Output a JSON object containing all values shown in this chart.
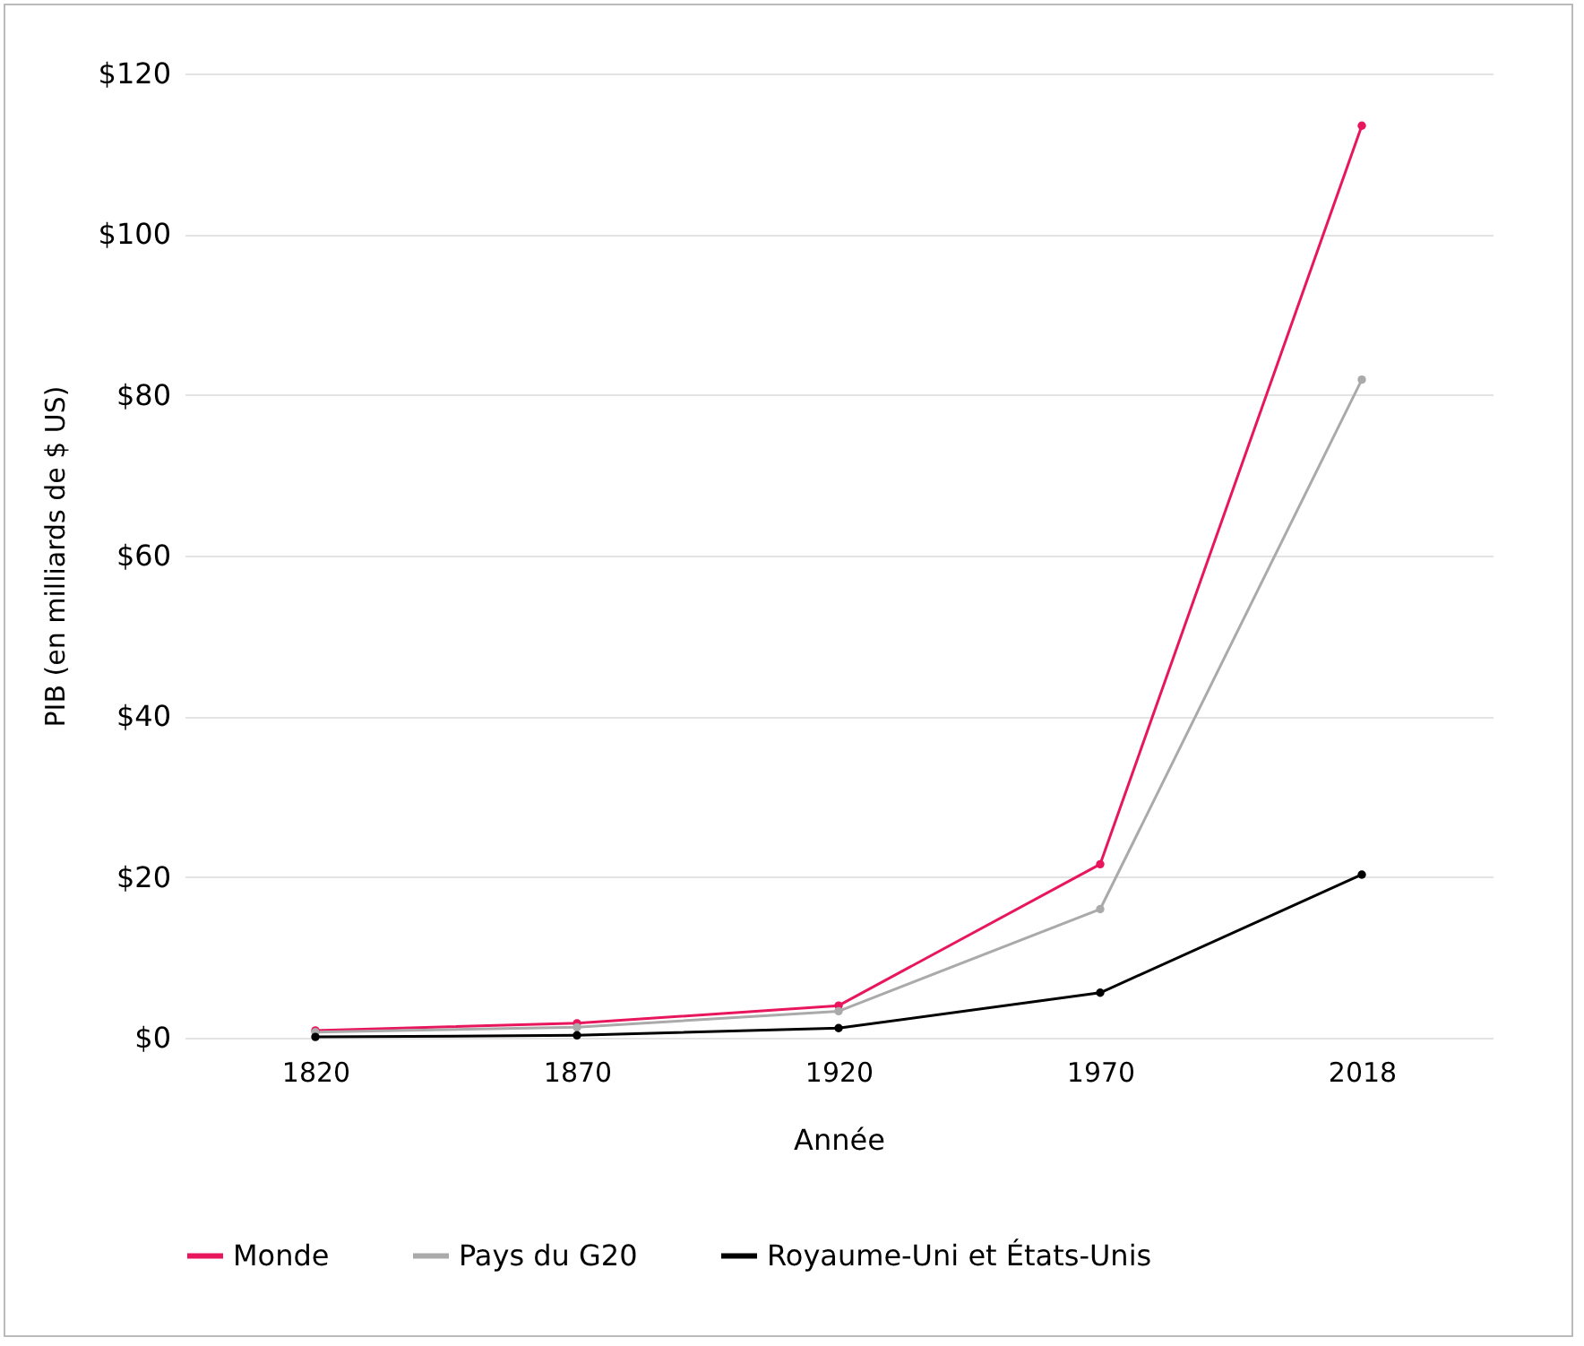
{
  "chart_data": {
    "type": "line",
    "xlabel": "Année",
    "ylabel": "PIB (en milliards de $ US)",
    "categories": [
      "1820",
      "1870",
      "1920",
      "1970",
      "2018"
    ],
    "series": [
      {
        "name": "Monde",
        "color": "#e8175d",
        "values": [
          0.9,
          1.8,
          4.0,
          21.6,
          113.5
        ]
      },
      {
        "name": "Pays du G20",
        "color": "#aaaaaa",
        "values": [
          0.7,
          1.3,
          3.3,
          16.0,
          81.9
        ]
      },
      {
        "name": "Royaume-Uni et États-Unis",
        "color": "#000000",
        "values": [
          0.1,
          0.3,
          1.2,
          5.6,
          20.3
        ]
      }
    ],
    "ylim": [
      0,
      120
    ],
    "yticks": [
      {
        "value": 0,
        "label": "$0"
      },
      {
        "value": 20,
        "label": "$20"
      },
      {
        "value": 40,
        "label": "$40"
      },
      {
        "value": 60,
        "label": "$60"
      },
      {
        "value": 80,
        "label": "$80"
      },
      {
        "value": 100,
        "label": "$100"
      },
      {
        "value": 120,
        "label": "$120"
      }
    ],
    "grid": "y",
    "legend": "bottom",
    "marker": "circle",
    "line_style": "solid"
  }
}
